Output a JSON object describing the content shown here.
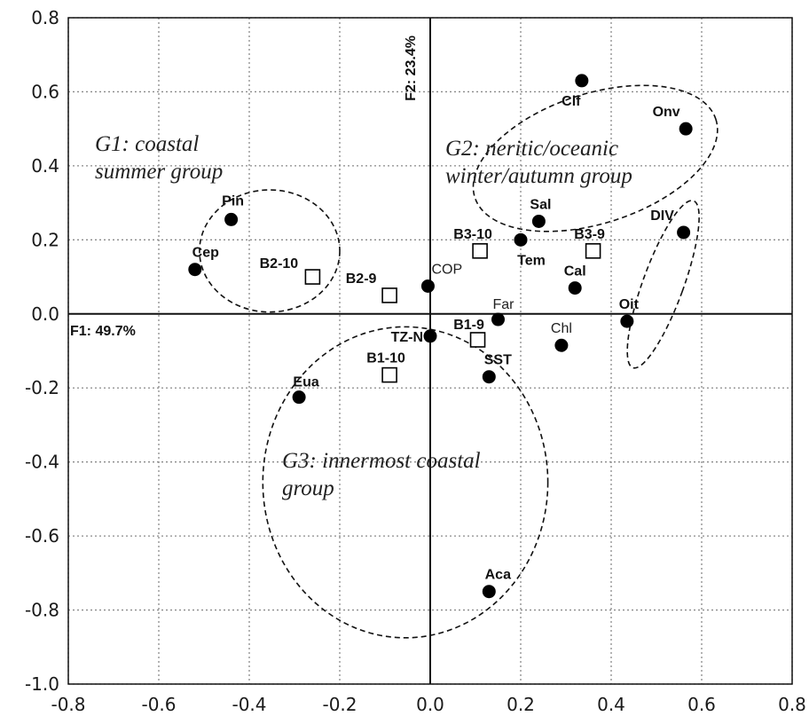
{
  "chart_data": {
    "type": "scatter",
    "title": "",
    "xlim": [
      -0.8,
      0.8
    ],
    "ylim": [
      -1.0,
      0.8
    ],
    "x_ticks": [
      "-0.8",
      "-0.6",
      "-0.4",
      "-0.2",
      "0.0",
      "0.2",
      "0.4",
      "0.6",
      "0.8"
    ],
    "y_ticks": [
      "0.8",
      "0.6",
      "0.4",
      "0.2",
      "0.0",
      "-0.2",
      "-0.4",
      "-0.6",
      "-0.8",
      "-1.0"
    ],
    "grid": true,
    "axis_f1_label": "F1: 49.7%",
    "axis_f2_label": "F2: 23.4%",
    "variables": [
      {
        "label": "Clf",
        "x": 0.335,
        "y": 0.63,
        "bold": true
      },
      {
        "label": "Onv",
        "x": 0.565,
        "y": 0.5,
        "bold": true
      },
      {
        "label": "Sal",
        "x": 0.24,
        "y": 0.25,
        "bold": true
      },
      {
        "label": "DIV",
        "x": 0.56,
        "y": 0.22,
        "bold": true
      },
      {
        "label": "Tem",
        "x": 0.2,
        "y": 0.2,
        "bold": true
      },
      {
        "label": "Cal",
        "x": 0.32,
        "y": 0.07,
        "bold": true
      },
      {
        "label": "COP",
        "x": -0.005,
        "y": 0.075,
        "bold": false
      },
      {
        "label": "Far",
        "x": 0.15,
        "y": -0.015,
        "bold": false
      },
      {
        "label": "Oit",
        "x": 0.435,
        "y": -0.02,
        "bold": true
      },
      {
        "label": "TZ-N",
        "x": 0.0,
        "y": -0.06,
        "bold": true
      },
      {
        "label": "Chl",
        "x": 0.29,
        "y": -0.085,
        "bold": false
      },
      {
        "label": "SST",
        "x": 0.13,
        "y": -0.17,
        "bold": true
      },
      {
        "label": "Pin",
        "x": -0.44,
        "y": 0.255,
        "bold": true
      },
      {
        "label": "Cep",
        "x": -0.52,
        "y": 0.12,
        "bold": true
      },
      {
        "label": "Eua",
        "x": -0.29,
        "y": -0.225,
        "bold": true
      },
      {
        "label": "Aca",
        "x": 0.13,
        "y": -0.75,
        "bold": true
      }
    ],
    "samples": [
      {
        "label": "B3-10",
        "x": 0.11,
        "y": 0.17
      },
      {
        "label": "B3-9",
        "x": 0.36,
        "y": 0.17
      },
      {
        "label": "B2-10",
        "x": -0.26,
        "y": 0.1
      },
      {
        "label": "B2-9",
        "x": -0.09,
        "y": 0.05
      },
      {
        "label": "B1-9",
        "x": 0.105,
        "y": -0.07
      },
      {
        "label": "B1-10",
        "x": -0.09,
        "y": -0.165
      }
    ],
    "groups": [
      {
        "label_lines": [
          "G1: coastal",
          "summer group"
        ]
      },
      {
        "label_lines": [
          "G2: neritic/oceanic",
          "winter/autumn group"
        ]
      },
      {
        "label_lines": [
          "G3: innermost coastal",
          "group"
        ]
      }
    ]
  }
}
